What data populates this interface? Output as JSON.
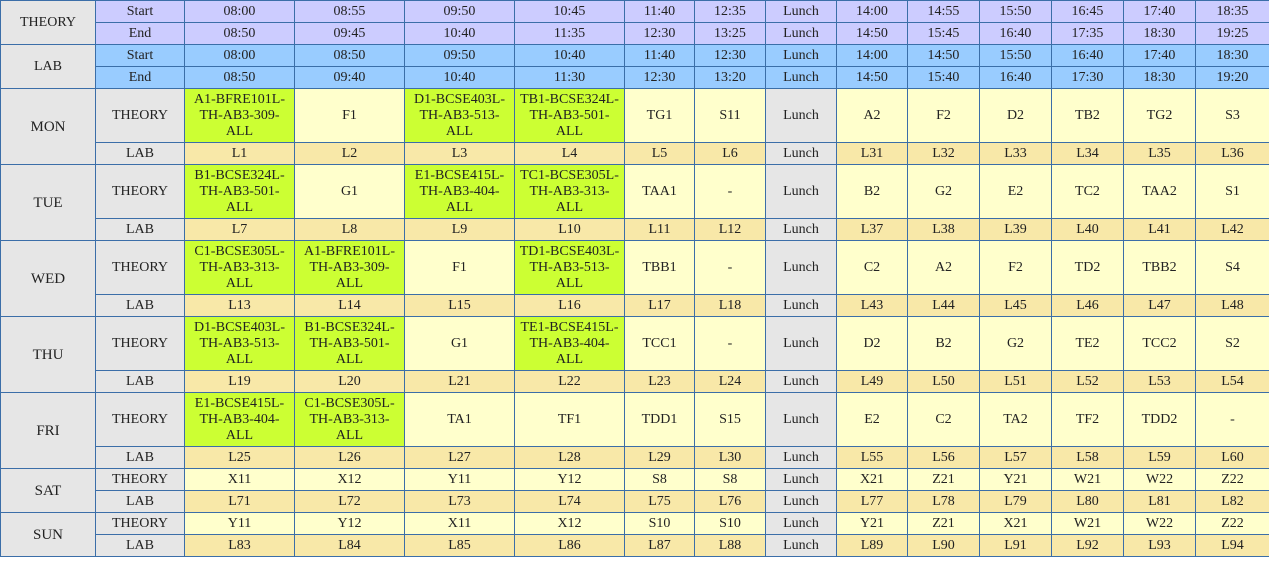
{
  "header": {
    "theory_label": "THEORY",
    "lab_label": "LAB",
    "start_label": "Start",
    "end_label": "End",
    "theory_start": [
      "08:00",
      "08:55",
      "09:50",
      "10:45",
      "11:40",
      "12:35",
      "Lunch",
      "14:00",
      "14:55",
      "15:50",
      "16:45",
      "17:40",
      "18:35"
    ],
    "theory_end": [
      "08:50",
      "09:45",
      "10:40",
      "11:35",
      "12:30",
      "13:25",
      "Lunch",
      "14:50",
      "15:45",
      "16:40",
      "17:35",
      "18:30",
      "19:25"
    ],
    "lab_start": [
      "08:00",
      "08:50",
      "09:50",
      "10:40",
      "11:40",
      "12:30",
      "Lunch",
      "14:00",
      "14:50",
      "15:50",
      "16:40",
      "17:40",
      "18:30"
    ],
    "lab_end": [
      "08:50",
      "09:40",
      "10:40",
      "11:30",
      "12:30",
      "13:20",
      "Lunch",
      "14:50",
      "15:40",
      "16:40",
      "17:30",
      "18:30",
      "19:20"
    ]
  },
  "type_labels": {
    "theory": "THEORY",
    "lab": "LAB"
  },
  "days": [
    {
      "name": "MON",
      "theory": [
        "A1-BFRE101L-TH-AB3-309-ALL",
        "F1",
        "D1-BCSE403L-TH-AB3-513-ALL",
        "TB1-BCSE324L-TH-AB3-501-ALL",
        "TG1",
        "S11",
        "Lunch",
        "A2",
        "F2",
        "D2",
        "TB2",
        "TG2",
        "S3"
      ],
      "lab": [
        "L1",
        "L2",
        "L3",
        "L4",
        "L5",
        "L6",
        "Lunch",
        "L31",
        "L32",
        "L33",
        "L34",
        "L35",
        "L36"
      ]
    },
    {
      "name": "TUE",
      "theory": [
        "B1-BCSE324L-TH-AB3-501-ALL",
        "G1",
        "E1-BCSE415L-TH-AB3-404-ALL",
        "TC1-BCSE305L-TH-AB3-313-ALL",
        "TAA1",
        "-",
        "Lunch",
        "B2",
        "G2",
        "E2",
        "TC2",
        "TAA2",
        "S1"
      ],
      "lab": [
        "L7",
        "L8",
        "L9",
        "L10",
        "L11",
        "L12",
        "Lunch",
        "L37",
        "L38",
        "L39",
        "L40",
        "L41",
        "L42"
      ]
    },
    {
      "name": "WED",
      "theory": [
        "C1-BCSE305L-TH-AB3-313-ALL",
        "A1-BFRE101L-TH-AB3-309-ALL",
        "F1",
        "TD1-BCSE403L-TH-AB3-513-ALL",
        "TBB1",
        "-",
        "Lunch",
        "C2",
        "A2",
        "F2",
        "TD2",
        "TBB2",
        "S4"
      ],
      "lab": [
        "L13",
        "L14",
        "L15",
        "L16",
        "L17",
        "L18",
        "Lunch",
        "L43",
        "L44",
        "L45",
        "L46",
        "L47",
        "L48"
      ]
    },
    {
      "name": "THU",
      "theory": [
        "D1-BCSE403L-TH-AB3-513-ALL",
        "B1-BCSE324L-TH-AB3-501-ALL",
        "G1",
        "TE1-BCSE415L-TH-AB3-404-ALL",
        "TCC1",
        "-",
        "Lunch",
        "D2",
        "B2",
        "G2",
        "TE2",
        "TCC2",
        "S2"
      ],
      "lab": [
        "L19",
        "L20",
        "L21",
        "L22",
        "L23",
        "L24",
        "Lunch",
        "L49",
        "L50",
        "L51",
        "L52",
        "L53",
        "L54"
      ]
    },
    {
      "name": "FRI",
      "theory": [
        "E1-BCSE415L-TH-AB3-404-ALL",
        "C1-BCSE305L-TH-AB3-313-ALL",
        "TA1",
        "TF1",
        "TDD1",
        "S15",
        "Lunch",
        "E2",
        "C2",
        "TA2",
        "TF2",
        "TDD2",
        "-"
      ],
      "lab": [
        "L25",
        "L26",
        "L27",
        "L28",
        "L29",
        "L30",
        "Lunch",
        "L55",
        "L56",
        "L57",
        "L58",
        "L59",
        "L60"
      ]
    },
    {
      "name": "SAT",
      "theory": [
        "X11",
        "X12",
        "Y11",
        "Y12",
        "S8",
        "S8",
        "Lunch",
        "X21",
        "Z21",
        "Y21",
        "W21",
        "W22",
        "Z22"
      ],
      "lab": [
        "L71",
        "L72",
        "L73",
        "L74",
        "L75",
        "L76",
        "Lunch",
        "L77",
        "L78",
        "L79",
        "L80",
        "L81",
        "L82"
      ]
    },
    {
      "name": "SUN",
      "theory": [
        "Y11",
        "Y12",
        "X11",
        "X12",
        "S10",
        "S10",
        "Lunch",
        "Y21",
        "Z21",
        "X21",
        "W21",
        "W22",
        "Z22"
      ],
      "lab": [
        "L83",
        "L84",
        "L85",
        "L86",
        "L87",
        "L88",
        "Lunch",
        "L89",
        "L90",
        "L91",
        "L92",
        "L93",
        "L94"
      ]
    }
  ],
  "colors": {
    "theory_header": "#ccccff",
    "lab_header": "#99ccff",
    "theory_cell": "#ffffcc",
    "lab_cell": "#f8e8a8",
    "booked_cell": "#ccff33",
    "label_cell": "#e6e6e6",
    "border": "#3b6ea8"
  }
}
